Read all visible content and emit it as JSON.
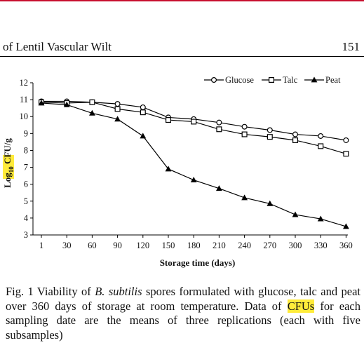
{
  "page": {
    "running_head": "of Lentil Vascular Wilt",
    "page_number": "151",
    "accent_color": "#c8102e"
  },
  "figure": {
    "caption": {
      "label": "Fig. 1",
      "text_1": " Viability of ",
      "species": "B. subtilis",
      "text_2": " spores formulated with glucose, talc and peat over 360 days of storage at room temperature. Data of ",
      "highlight": "CFUs",
      "text_3": " for each sampling date are the means of three replications (each with five subsamples)",
      "highlight_color": "#ffeb3b"
    }
  },
  "chart_data": {
    "type": "line",
    "xlabel": "Storage time (days)",
    "ylabel_parts": {
      "log": "Log",
      "sub": "10",
      "highlight": "CFU",
      "rest": "/g"
    },
    "categories": [
      "1",
      "30",
      "60",
      "90",
      "120",
      "150",
      "180",
      "210",
      "240",
      "270",
      "300",
      "330",
      "360"
    ],
    "ylim": [
      3,
      12
    ],
    "yticks": [
      3,
      4,
      5,
      6,
      7,
      8,
      9,
      10,
      11,
      12
    ],
    "grid": false,
    "legend_position": "top-right",
    "series": [
      {
        "name": "Glucose",
        "marker": "open-circle",
        "values": [
          10.9,
          10.9,
          10.85,
          10.75,
          10.55,
          9.95,
          9.85,
          9.65,
          9.4,
          9.2,
          8.95,
          8.85,
          8.6
        ]
      },
      {
        "name": "Talc",
        "marker": "open-square",
        "values": [
          10.85,
          10.8,
          10.85,
          10.45,
          10.25,
          9.8,
          9.7,
          9.25,
          8.95,
          8.8,
          8.6,
          8.25,
          7.8
        ]
      },
      {
        "name": "Peat",
        "marker": "filled-triangle",
        "values": [
          10.8,
          10.7,
          10.2,
          9.85,
          8.85,
          6.9,
          6.25,
          5.75,
          5.2,
          4.85,
          4.2,
          3.95,
          3.5
        ]
      }
    ]
  }
}
